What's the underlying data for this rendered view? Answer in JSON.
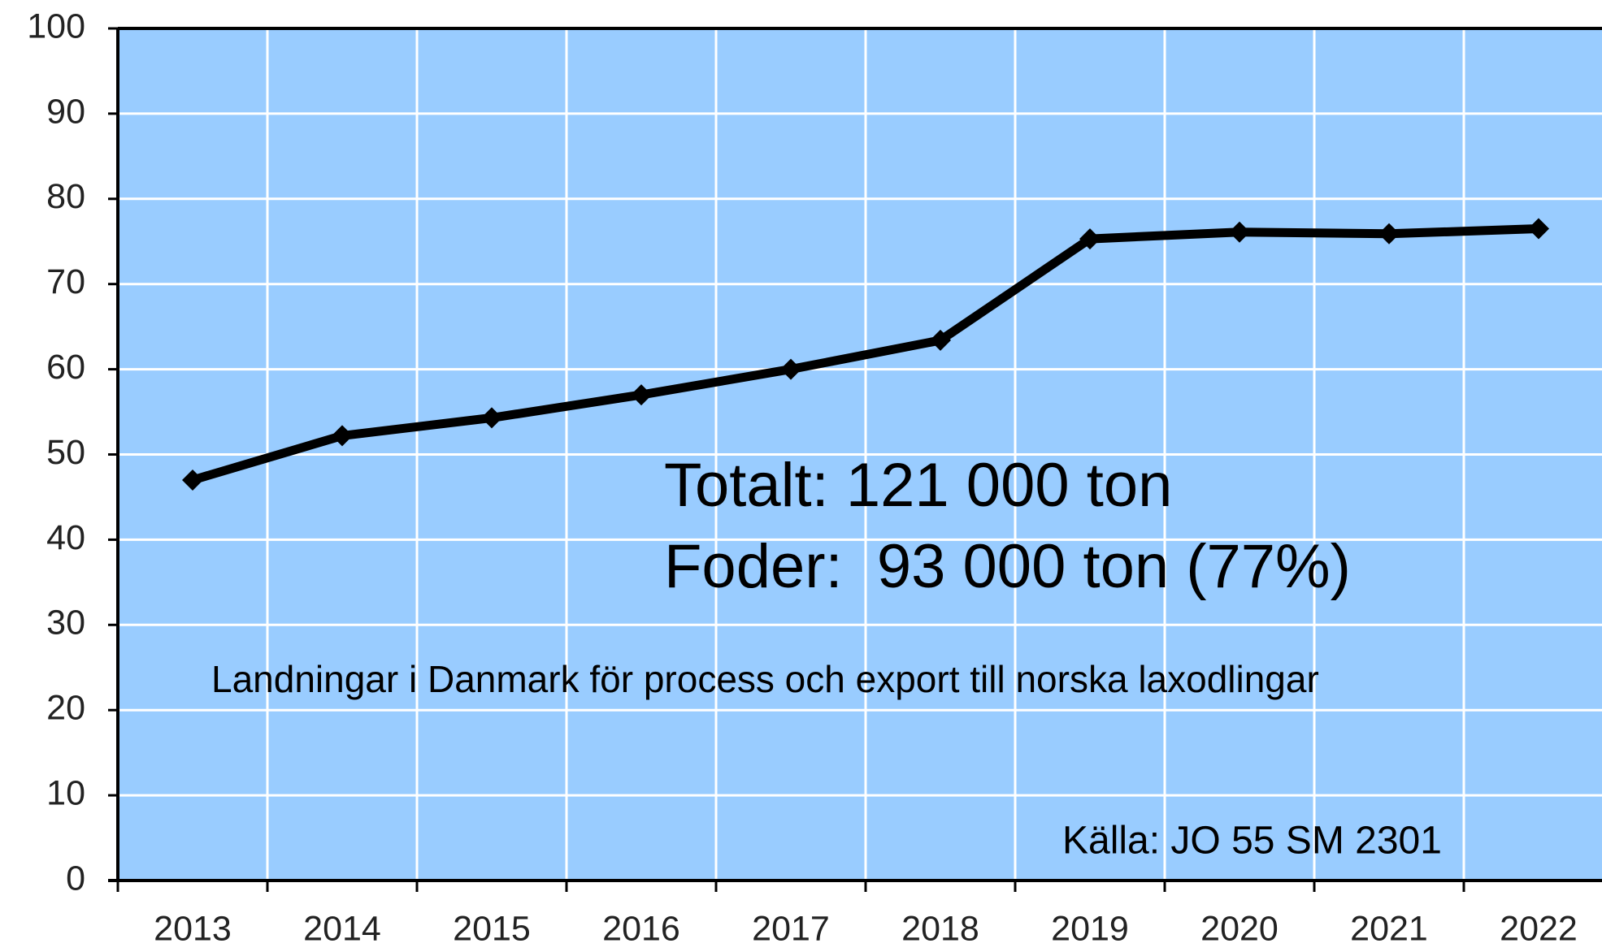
{
  "chart_data": {
    "type": "line",
    "categories": [
      "2013",
      "2014",
      "2015",
      "2016",
      "2017",
      "2018",
      "2019",
      "2020",
      "2021",
      "2022"
    ],
    "values": [
      47,
      52.2,
      54.3,
      57,
      60,
      63.4,
      75.3,
      76.1,
      75.9,
      76.5
    ],
    "color": "#000000",
    "background": "#99ccff",
    "ylim": [
      0,
      100
    ],
    "yticks": [
      0,
      10,
      20,
      30,
      40,
      50,
      60,
      70,
      80,
      90,
      100
    ],
    "grid": true,
    "annotations": [
      "Totalt: 121 000 ton",
      "Foder:  93 000 ton (77%)",
      "Landningar i Danmark för process och export till norska laxodlingar",
      "Källa: JO 55 SM 2301"
    ]
  }
}
